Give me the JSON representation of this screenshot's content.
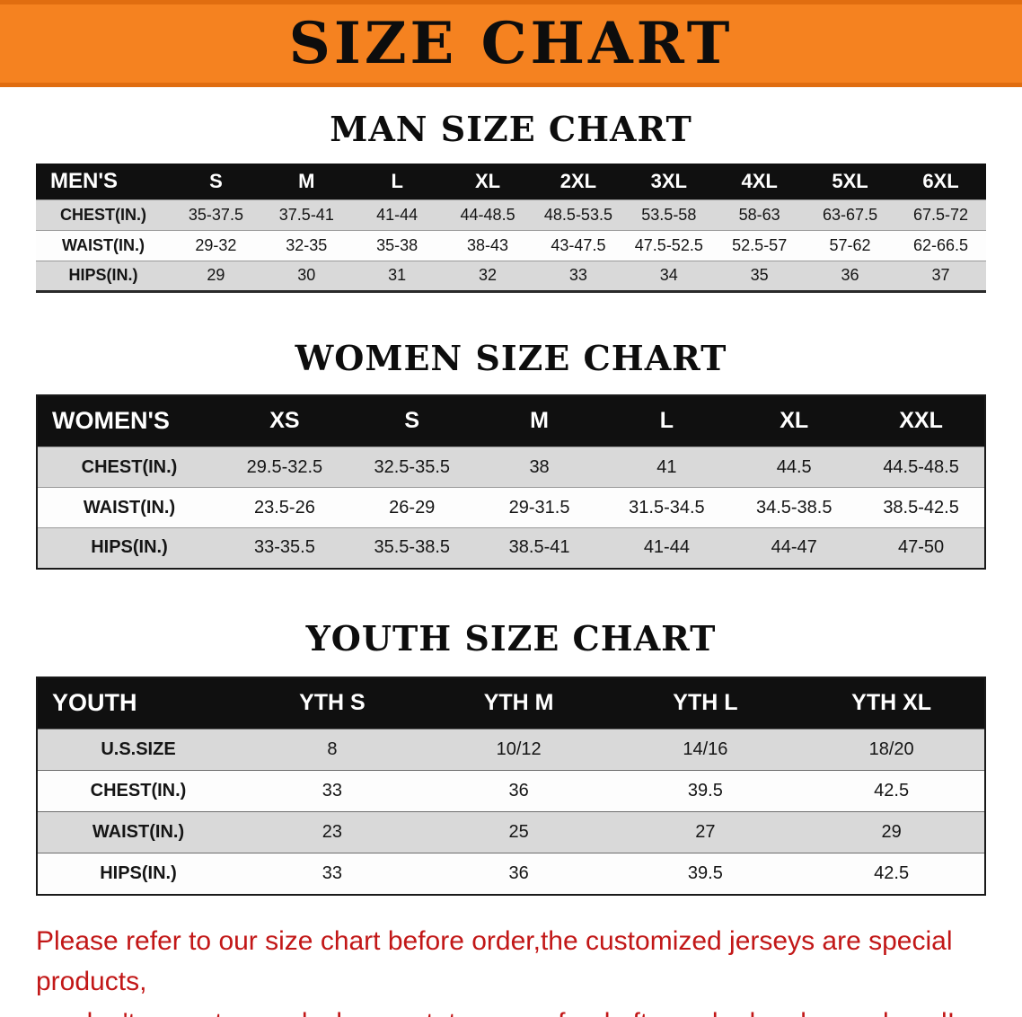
{
  "banner": {
    "title": "SIZE CHART"
  },
  "men": {
    "heading": "MAN SIZE CHART",
    "corner": "MEN'S",
    "sizes": [
      "S",
      "M",
      "L",
      "XL",
      "2XL",
      "3XL",
      "4XL",
      "5XL",
      "6XL"
    ],
    "rows": [
      {
        "label": "CHEST(IN.)",
        "values": [
          "35-37.5",
          "37.5-41",
          "41-44",
          "44-48.5",
          "48.5-53.5",
          "53.5-58",
          "58-63",
          "63-67.5",
          "67.5-72"
        ]
      },
      {
        "label": "WAIST(IN.)",
        "values": [
          "29-32",
          "32-35",
          "35-38",
          "38-43",
          "43-47.5",
          "47.5-52.5",
          "52.5-57",
          "57-62",
          "62-66.5"
        ]
      },
      {
        "label": "HIPS(IN.)",
        "values": [
          "29",
          "30",
          "31",
          "32",
          "33",
          "34",
          "35",
          "36",
          "37"
        ]
      }
    ]
  },
  "women": {
    "heading": "WOMEN SIZE CHART",
    "corner": "WOMEN'S",
    "sizes": [
      "XS",
      "S",
      "M",
      "L",
      "XL",
      "XXL"
    ],
    "rows": [
      {
        "label": "CHEST(IN.)",
        "values": [
          "29.5-32.5",
          "32.5-35.5",
          "38",
          "41",
          "44.5",
          "44.5-48.5"
        ]
      },
      {
        "label": "WAIST(IN.)",
        "values": [
          "23.5-26",
          "26-29",
          "29-31.5",
          "31.5-34.5",
          "34.5-38.5",
          "38.5-42.5"
        ]
      },
      {
        "label": "HIPS(IN.)",
        "values": [
          "33-35.5",
          "35.5-38.5",
          "38.5-41",
          "41-44",
          "44-47",
          "47-50"
        ]
      }
    ]
  },
  "youth": {
    "heading": "YOUTH SIZE CHART",
    "corner": "YOUTH",
    "sizes": [
      "YTH S",
      "YTH M",
      "YTH L",
      "YTH XL"
    ],
    "rows": [
      {
        "label": "U.S.SIZE",
        "values": [
          "8",
          "10/12",
          "14/16",
          "18/20"
        ]
      },
      {
        "label": "CHEST(IN.)",
        "values": [
          "33",
          "36",
          "39.5",
          "42.5"
        ]
      },
      {
        "label": "WAIST(IN.)",
        "values": [
          "23",
          "25",
          "27",
          "29"
        ]
      },
      {
        "label": "HIPS(IN.)",
        "values": [
          "33",
          "36",
          "39.5",
          "42.5"
        ]
      }
    ]
  },
  "footer": {
    "line1": "Please refer to our size chart before order,the customized jerseys are special products,",
    "line2": "we don't accept cancel, change, teturn or refund after order has been placed!"
  },
  "colors": {
    "banner_bg": "#f58220",
    "table_header_bg": "#101010",
    "row_alt_bg": "#d9d9d9",
    "footer_text": "#c21717"
  }
}
